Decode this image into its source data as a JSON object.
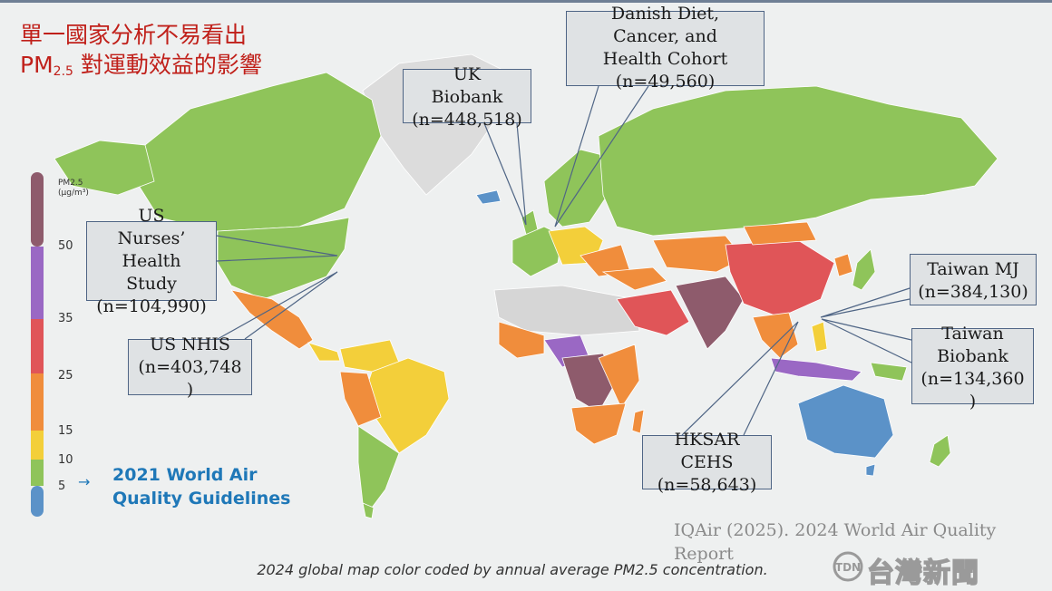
{
  "title": {
    "line1": "單一國家分析不易看出",
    "line2_prefix": "PM",
    "line2_sub": "2.5",
    "line2_rest": " 對運動效益的影響"
  },
  "legend": {
    "title_line1": "PM2.5",
    "title_line2": "(μg/m³)",
    "ticks": [
      "50",
      "35",
      "25",
      "15",
      "10",
      "5"
    ],
    "colors": [
      "#8e5b6c",
      "#9a68c4",
      "#e05558",
      "#f08d3c",
      "#f3cf3a",
      "#8fc45a",
      "#5b92c8"
    ],
    "arrow": "→",
    "guideline_line1": "2021 World Air",
    "guideline_line2": "Quality Guidelines"
  },
  "callouts": [
    {
      "id": "uk-biobank",
      "text": "UK\nBiobank\n(n=448,518)"
    },
    {
      "id": "danish",
      "text": "Danish Diet,\nCancer, and\nHealth Cohort\n(n=49,560)"
    },
    {
      "id": "us-nurses",
      "text": "US\nNurses’\nHealth\nStudy\n(n=104,990)"
    },
    {
      "id": "us-nhis",
      "text": "US NHIS\n(n=403,748\n)"
    },
    {
      "id": "taiwan-mj",
      "text": "Taiwan MJ\n(n=384,130)"
    },
    {
      "id": "taiwan-biobank",
      "text": "Taiwan\nBiobank\n(n=134,360\n)"
    },
    {
      "id": "hksar",
      "text": "HKSAR\nCEHS\n(n=58,643)"
    }
  ],
  "source": "IQAir (2025). 2024 World Air Quality Report",
  "caption": "2024 global map color coded by annual average PM2.5 concentration.",
  "logo": {
    "text": "台灣新聞",
    "badge": "TDN"
  },
  "map_colors": {
    "ocean": "#eef0f0",
    "greenland": "#dcdcdc",
    "green": "#8fc45a",
    "yellow": "#f3cf3a",
    "orange": "#f08d3c",
    "red": "#e05558",
    "purple": "#9a68c4",
    "brown": "#8e5b6c",
    "blue": "#5b92c8",
    "nodata": "#d6d6d6"
  }
}
